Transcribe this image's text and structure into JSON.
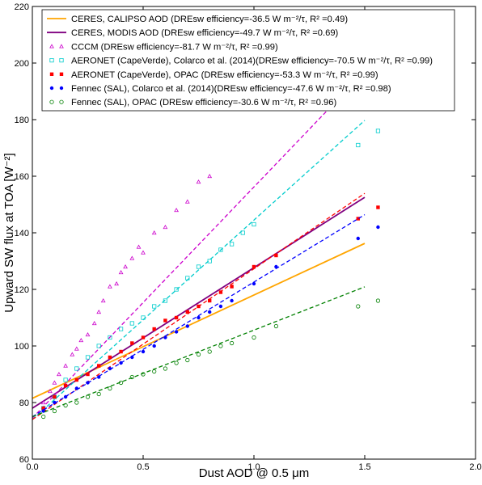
{
  "chart_data": {
    "type": "scatter",
    "xlabel": "Dust AOD @ 0.5 μm",
    "ylabel": "Upward SW flux at TOA [W⁻²]",
    "xlim": [
      0.0,
      2.0
    ],
    "ylim": [
      60,
      220
    ],
    "xticks": [
      "0.0",
      "0.5",
      "1.0",
      "1.5",
      "2.0"
    ],
    "yticks": [
      "60",
      "80",
      "100",
      "120",
      "140",
      "160",
      "180",
      "200",
      "220"
    ],
    "grid": false,
    "legend_position": "top-left",
    "series": [
      {
        "name": "CERES, CALIPSO AOD (DREsw efficiency=-36.5 W m⁻²/τ, R² =0.49)",
        "kind": "fit",
        "color": "#ffa500",
        "line": "solid",
        "intercept": 81.5,
        "slope": 36.5,
        "x_range": [
          0.0,
          1.5
        ]
      },
      {
        "name": "CERES, MODIS AOD (DREsw efficiency=-49.7 W m⁻²/τ, R² =0.69)",
        "kind": "fit",
        "color": "#800080",
        "line": "solid",
        "intercept": 78.0,
        "slope": 49.7,
        "x_range": [
          0.0,
          1.5
        ]
      },
      {
        "name": "CCCM  (DREsw efficiency=-81.7 W m⁻²/τ, R² =0.99)",
        "kind": "points",
        "marker": "triangle",
        "color": "#cc00cc",
        "line": "dashed",
        "intercept": 74.5,
        "slope": 81.7,
        "x_range": [
          0.0,
          1.5
        ],
        "points": [
          [
            0.05,
            80
          ],
          [
            0.08,
            84
          ],
          [
            0.1,
            87
          ],
          [
            0.12,
            90
          ],
          [
            0.15,
            93
          ],
          [
            0.18,
            97
          ],
          [
            0.2,
            99
          ],
          [
            0.22,
            102
          ],
          [
            0.25,
            104
          ],
          [
            0.28,
            108
          ],
          [
            0.3,
            112
          ],
          [
            0.32,
            116
          ],
          [
            0.35,
            121
          ],
          [
            0.38,
            122
          ],
          [
            0.4,
            126
          ],
          [
            0.42,
            128
          ],
          [
            0.45,
            131
          ],
          [
            0.48,
            135
          ],
          [
            0.5,
            133
          ],
          [
            0.55,
            140
          ],
          [
            0.6,
            142
          ],
          [
            0.65,
            148
          ],
          [
            0.7,
            151
          ],
          [
            0.75,
            158
          ],
          [
            0.8,
            160
          ]
        ]
      },
      {
        "name": "AERONET (CapeVerde), Colarco et al. (2014)(DREsw efficiency=-70.5 W m⁻²/τ, R² =0.99)",
        "kind": "points",
        "marker": "square-open",
        "color": "#00cccc",
        "line": "dashed",
        "intercept": 74.0,
        "slope": 70.5,
        "x_range": [
          0.0,
          1.5
        ],
        "points": [
          [
            0.05,
            78
          ],
          [
            0.1,
            82
          ],
          [
            0.15,
            88
          ],
          [
            0.2,
            92
          ],
          [
            0.25,
            96
          ],
          [
            0.3,
            100
          ],
          [
            0.35,
            103
          ],
          [
            0.4,
            106
          ],
          [
            0.45,
            108
          ],
          [
            0.5,
            110
          ],
          [
            0.55,
            114
          ],
          [
            0.6,
            116
          ],
          [
            0.65,
            120
          ],
          [
            0.7,
            124
          ],
          [
            0.75,
            128
          ],
          [
            0.8,
            130
          ],
          [
            0.85,
            134
          ],
          [
            0.9,
            136
          ],
          [
            0.95,
            140
          ],
          [
            1.0,
            143
          ],
          [
            1.47,
            171
          ],
          [
            1.56,
            176
          ]
        ]
      },
      {
        "name": "AERONET (CapeVerde), OPAC (DREsw efficiency=-53.3 W m⁻²/τ, R² =0.99)",
        "kind": "points",
        "marker": "square",
        "color": "#ff0000",
        "line": "dashed",
        "intercept": 74.0,
        "slope": 53.3,
        "x_range": [
          0.0,
          1.5
        ],
        "points": [
          [
            0.05,
            78
          ],
          [
            0.1,
            82
          ],
          [
            0.15,
            86
          ],
          [
            0.2,
            88
          ],
          [
            0.25,
            90
          ],
          [
            0.3,
            93
          ],
          [
            0.35,
            96
          ],
          [
            0.4,
            98
          ],
          [
            0.45,
            101
          ],
          [
            0.5,
            103
          ],
          [
            0.55,
            106
          ],
          [
            0.6,
            109
          ],
          [
            0.65,
            110
          ],
          [
            0.7,
            112
          ],
          [
            0.75,
            114
          ],
          [
            0.8,
            116
          ],
          [
            0.85,
            119
          ],
          [
            0.9,
            121
          ],
          [
            1.0,
            128
          ],
          [
            1.1,
            132
          ],
          [
            1.47,
            145
          ],
          [
            1.56,
            149
          ]
        ]
      },
      {
        "name": "Fennec (SAL), Colarco et al. (2014)(DREsw efficiency=-47.6 W m⁻²/τ, R² =0.98)",
        "kind": "points",
        "marker": "circle",
        "color": "#0000ff",
        "line": "dashed",
        "intercept": 75.0,
        "slope": 47.6,
        "x_range": [
          0.0,
          1.5
        ],
        "points": [
          [
            0.05,
            77
          ],
          [
            0.1,
            80
          ],
          [
            0.15,
            82
          ],
          [
            0.2,
            85
          ],
          [
            0.25,
            87
          ],
          [
            0.3,
            89
          ],
          [
            0.35,
            92
          ],
          [
            0.4,
            94
          ],
          [
            0.45,
            96
          ],
          [
            0.5,
            98
          ],
          [
            0.55,
            100
          ],
          [
            0.6,
            103
          ],
          [
            0.65,
            105
          ],
          [
            0.7,
            107
          ],
          [
            0.75,
            110
          ],
          [
            0.8,
            112
          ],
          [
            0.85,
            114
          ],
          [
            0.9,
            116
          ],
          [
            1.0,
            122
          ],
          [
            1.1,
            128
          ],
          [
            1.47,
            138
          ],
          [
            1.56,
            142
          ]
        ]
      },
      {
        "name": "Fennec (SAL), OPAC (DREsw efficiency=-30.6 W m⁻²/τ, R² =0.96)",
        "kind": "points",
        "marker": "circle-open",
        "color": "#008000",
        "line": "dashed",
        "intercept": 75.0,
        "slope": 30.6,
        "x_range": [
          0.0,
          1.5
        ],
        "points": [
          [
            0.05,
            75
          ],
          [
            0.1,
            77
          ],
          [
            0.15,
            79
          ],
          [
            0.2,
            80
          ],
          [
            0.25,
            82
          ],
          [
            0.3,
            83
          ],
          [
            0.35,
            85
          ],
          [
            0.4,
            87
          ],
          [
            0.45,
            89
          ],
          [
            0.5,
            90
          ],
          [
            0.55,
            91
          ],
          [
            0.6,
            92
          ],
          [
            0.65,
            94
          ],
          [
            0.7,
            95
          ],
          [
            0.75,
            97
          ],
          [
            0.8,
            98
          ],
          [
            0.85,
            100
          ],
          [
            0.9,
            101
          ],
          [
            1.0,
            103
          ],
          [
            1.1,
            107
          ],
          [
            1.47,
            114
          ],
          [
            1.56,
            116
          ]
        ]
      }
    ]
  }
}
